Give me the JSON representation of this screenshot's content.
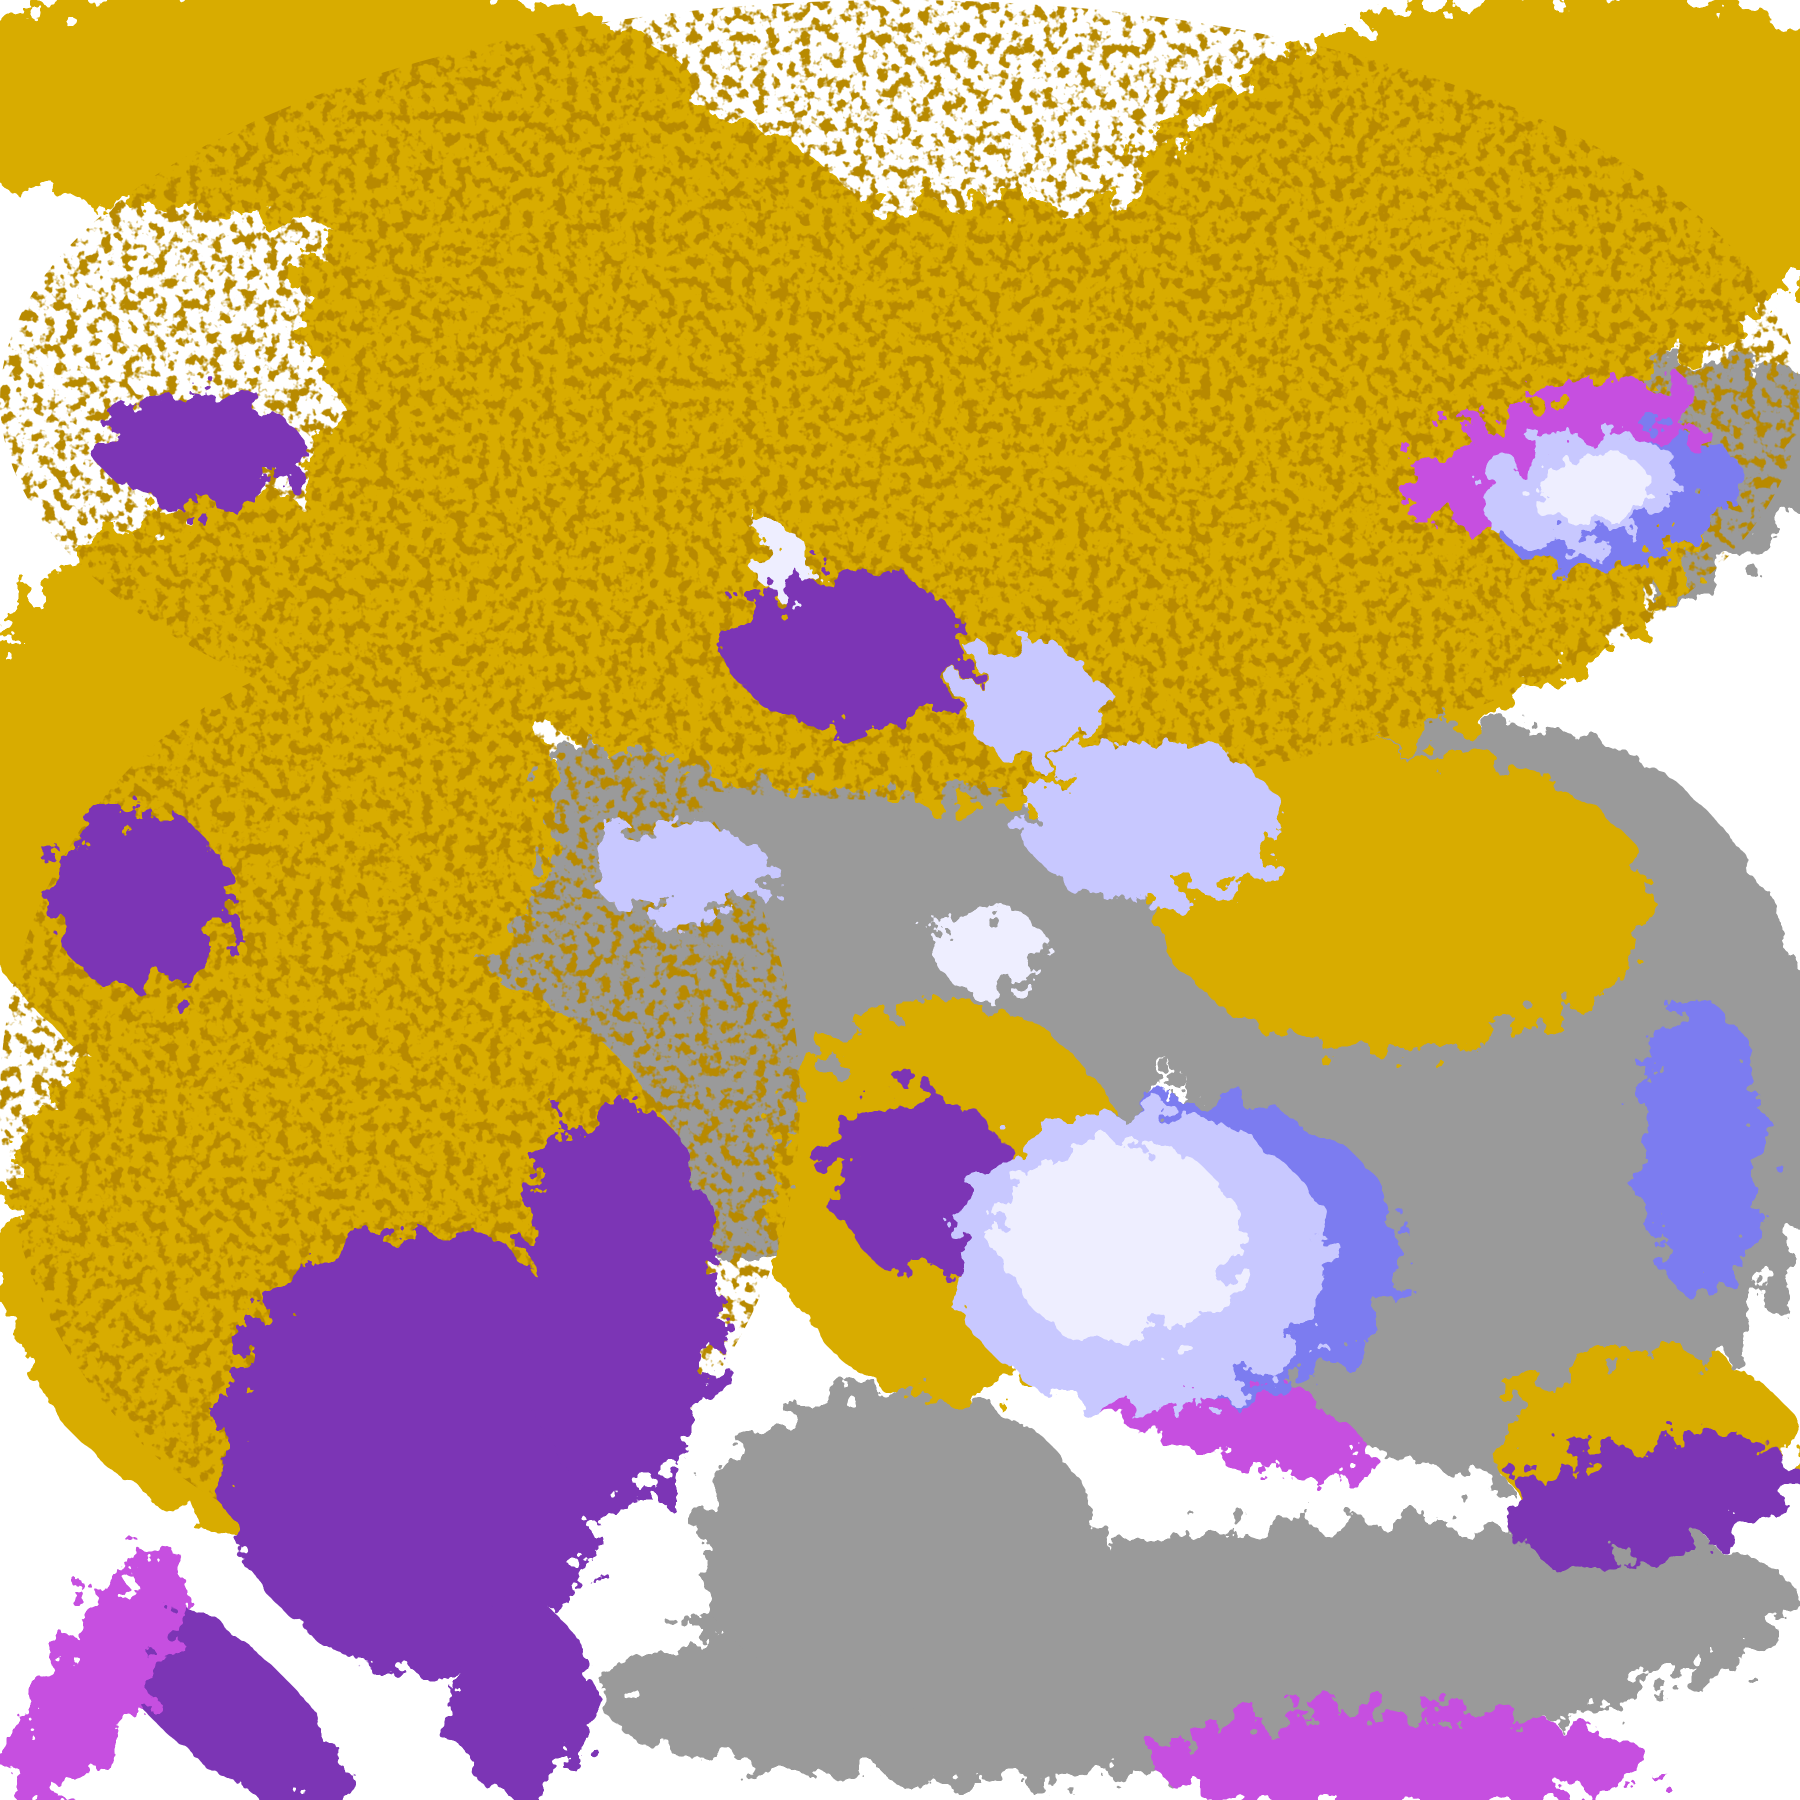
{
  "image": {
    "kind": "false-color satellite cloud imagery",
    "palette": {
      "clear": "#FFFFFF",
      "gold": "#D8AC00",
      "dark_gold": "#B88A00",
      "purple": "#7B35B5",
      "magenta": "#C64FE0",
      "periwinkle": "#7C7CF0",
      "lavender": "#C8C8FF",
      "pale": "#EEEEFF",
      "grey": "#9A9A9A",
      "light_grey": "#BDBDBD"
    }
  }
}
